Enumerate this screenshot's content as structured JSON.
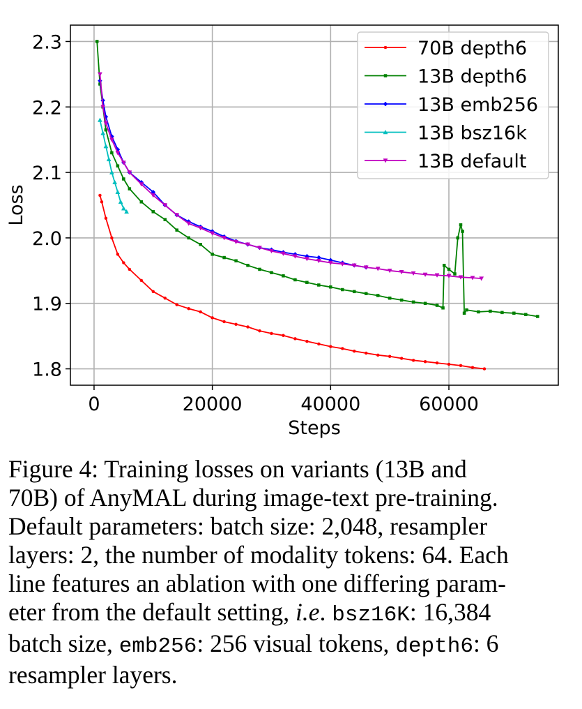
{
  "chart_data": {
    "type": "line",
    "xlabel": "Steps",
    "ylabel": "Loss",
    "xlim": [
      -4000,
      78500
    ],
    "ylim": [
      1.775,
      2.325
    ],
    "xticks": [
      0,
      20000,
      40000,
      60000
    ],
    "xtick_labels": [
      "0",
      "20000",
      "40000",
      "60000"
    ],
    "yticks": [
      1.8,
      1.9,
      2.0,
      2.1,
      2.2,
      2.3
    ],
    "ytick_labels": [
      "1.8",
      "1.9",
      "2.0",
      "2.1",
      "2.2",
      "2.3"
    ],
    "grid": true,
    "legend_position": "upper right",
    "series": [
      {
        "name": "70B depth6",
        "color": "#ff0000",
        "marker": "dot",
        "points": [
          [
            1000,
            2.065
          ],
          [
            1300,
            2.055
          ],
          [
            2000,
            2.03
          ],
          [
            3000,
            2.0
          ],
          [
            4000,
            1.975
          ],
          [
            5000,
            1.962
          ],
          [
            6000,
            1.952
          ],
          [
            8000,
            1.935
          ],
          [
            10000,
            1.918
          ],
          [
            12000,
            1.908
          ],
          [
            14000,
            1.898
          ],
          [
            16000,
            1.892
          ],
          [
            18000,
            1.887
          ],
          [
            20000,
            1.878
          ],
          [
            22000,
            1.872
          ],
          [
            24000,
            1.868
          ],
          [
            26000,
            1.864
          ],
          [
            28000,
            1.858
          ],
          [
            30000,
            1.854
          ],
          [
            32000,
            1.851
          ],
          [
            34000,
            1.846
          ],
          [
            36000,
            1.842
          ],
          [
            38000,
            1.838
          ],
          [
            40000,
            1.834
          ],
          [
            42000,
            1.831
          ],
          [
            44000,
            1.827
          ],
          [
            46000,
            1.824
          ],
          [
            48000,
            1.821
          ],
          [
            50000,
            1.819
          ],
          [
            52000,
            1.816
          ],
          [
            54000,
            1.813
          ],
          [
            56000,
            1.811
          ],
          [
            58000,
            1.809
          ],
          [
            60000,
            1.807
          ],
          [
            62000,
            1.805
          ],
          [
            64000,
            1.802
          ],
          [
            66000,
            1.8
          ]
        ]
      },
      {
        "name": "13B depth6",
        "color": "#008000",
        "marker": "square",
        "points": [
          [
            500,
            2.3
          ],
          [
            1000,
            2.235
          ],
          [
            1500,
            2.2
          ],
          [
            2000,
            2.165
          ],
          [
            3000,
            2.13
          ],
          [
            4000,
            2.11
          ],
          [
            5000,
            2.09
          ],
          [
            6000,
            2.075
          ],
          [
            8000,
            2.055
          ],
          [
            10000,
            2.04
          ],
          [
            12000,
            2.028
          ],
          [
            14000,
            2.012
          ],
          [
            16000,
            2.0
          ],
          [
            18000,
            1.99
          ],
          [
            20000,
            1.975
          ],
          [
            22000,
            1.97
          ],
          [
            24000,
            1.965
          ],
          [
            26000,
            1.958
          ],
          [
            28000,
            1.952
          ],
          [
            30000,
            1.947
          ],
          [
            32000,
            1.942
          ],
          [
            34000,
            1.936
          ],
          [
            36000,
            1.932
          ],
          [
            38000,
            1.928
          ],
          [
            40000,
            1.925
          ],
          [
            42000,
            1.921
          ],
          [
            44000,
            1.918
          ],
          [
            46000,
            1.915
          ],
          [
            48000,
            1.912
          ],
          [
            50000,
            1.908
          ],
          [
            52000,
            1.905
          ],
          [
            54000,
            1.902
          ],
          [
            56000,
            1.9
          ],
          [
            58000,
            1.897
          ],
          [
            59000,
            1.893
          ],
          [
            59200,
            1.958
          ],
          [
            60000,
            1.952
          ],
          [
            61000,
            1.945
          ],
          [
            61500,
            2.0
          ],
          [
            62000,
            2.02
          ],
          [
            62300,
            2.01
          ],
          [
            62600,
            1.885
          ],
          [
            63000,
            1.89
          ],
          [
            65000,
            1.887
          ],
          [
            67000,
            1.888
          ],
          [
            69000,
            1.886
          ],
          [
            71000,
            1.885
          ],
          [
            73000,
            1.883
          ],
          [
            75000,
            1.88
          ]
        ]
      },
      {
        "name": "13B emb256",
        "color": "#0000ff",
        "marker": "diamond",
        "points": [
          [
            1000,
            2.24
          ],
          [
            1500,
            2.21
          ],
          [
            2000,
            2.185
          ],
          [
            3000,
            2.155
          ],
          [
            4000,
            2.135
          ],
          [
            5000,
            2.115
          ],
          [
            6000,
            2.1
          ],
          [
            8000,
            2.085
          ],
          [
            10000,
            2.07
          ],
          [
            12000,
            2.05
          ],
          [
            14000,
            2.035
          ],
          [
            16000,
            2.025
          ],
          [
            18000,
            2.017
          ],
          [
            20000,
            2.01
          ],
          [
            22000,
            2.002
          ],
          [
            24000,
            1.995
          ],
          [
            26000,
            1.99
          ],
          [
            28000,
            1.985
          ],
          [
            30000,
            1.982
          ],
          [
            32000,
            1.978
          ],
          [
            34000,
            1.975
          ],
          [
            36000,
            1.972
          ],
          [
            38000,
            1.97
          ],
          [
            40000,
            1.966
          ],
          [
            42000,
            1.962
          ],
          [
            44000,
            1.958
          ],
          [
            46000,
            1.955
          ]
        ]
      },
      {
        "name": "13B bsz16k",
        "color": "#00bfbf",
        "marker": "triangle-up",
        "points": [
          [
            1000,
            2.18
          ],
          [
            1500,
            2.16
          ],
          [
            2000,
            2.14
          ],
          [
            2500,
            2.12
          ],
          [
            3000,
            2.1
          ],
          [
            3500,
            2.085
          ],
          [
            4000,
            2.07
          ],
          [
            4500,
            2.055
          ],
          [
            5000,
            2.045
          ],
          [
            5500,
            2.04
          ]
        ]
      },
      {
        "name": "13B default",
        "color": "#bf00bf",
        "marker": "triangle-down",
        "points": [
          [
            1000,
            2.25
          ],
          [
            1500,
            2.2
          ],
          [
            2000,
            2.175
          ],
          [
            3000,
            2.15
          ],
          [
            4000,
            2.13
          ],
          [
            5000,
            2.115
          ],
          [
            6000,
            2.1
          ],
          [
            8000,
            2.082
          ],
          [
            10000,
            2.065
          ],
          [
            12000,
            2.05
          ],
          [
            14000,
            2.035
          ],
          [
            16000,
            2.022
          ],
          [
            18000,
            2.015
          ],
          [
            20000,
            2.007
          ],
          [
            22000,
            2.0
          ],
          [
            24000,
            1.994
          ],
          [
            26000,
            1.99
          ],
          [
            28000,
            1.985
          ],
          [
            30000,
            1.98
          ],
          [
            32000,
            1.976
          ],
          [
            34000,
            1.972
          ],
          [
            36000,
            1.968
          ],
          [
            38000,
            1.965
          ],
          [
            40000,
            1.962
          ],
          [
            42000,
            1.96
          ],
          [
            44000,
            1.958
          ],
          [
            46000,
            1.955
          ],
          [
            48000,
            1.953
          ],
          [
            50000,
            1.95
          ],
          [
            52000,
            1.948
          ],
          [
            54000,
            1.946
          ],
          [
            56000,
            1.944
          ],
          [
            58000,
            1.943
          ],
          [
            60000,
            1.942
          ],
          [
            62000,
            1.94
          ],
          [
            64000,
            1.939
          ],
          [
            65500,
            1.938
          ]
        ]
      }
    ]
  },
  "caption": {
    "l1": "Figure 4:  Training losses on variants (13B and",
    "l2": "70B) of AnyMAL during image-text pre-training.",
    "l3": "Default parameters: batch size: 2,048, resampler",
    "l4": "layers: 2, the number of modality tokens: 64. Each",
    "l5": "line features an ablation with one differing param-",
    "l6a": "eter from the default setting, ",
    "l6_ie": "i.e",
    "l6b": ". ",
    "l6_code": "bsz16K",
    "l6c": ": 16,384",
    "l7a": "batch size, ",
    "l7_code1": "emb256",
    "l7b": ": 256 visual tokens, ",
    "l7_code2": "depth6",
    "l7c": ": 6",
    "l8": "resampler layers."
  }
}
